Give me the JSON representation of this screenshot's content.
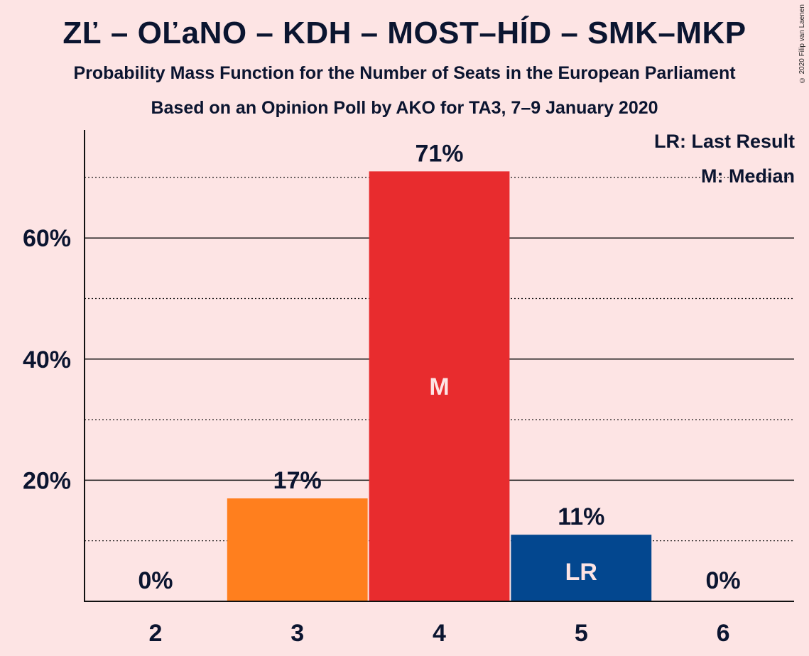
{
  "title": "ZĽ – OĽaNO – KDH – MOST–HÍD – SMK–MKP",
  "subtitle1": "Probability Mass Function for the Number of Seats in the European Parliament",
  "subtitle2": "Based on an Opinion Poll by AKO for TA3, 7–9 January 2020",
  "copyright": "© 2020 Filip van Laenen",
  "legend": {
    "lr": "LR: Last Result",
    "m": "M: Median"
  },
  "chart_data": {
    "type": "bar",
    "categories": [
      "2",
      "3",
      "4",
      "5",
      "6"
    ],
    "values": [
      0,
      17,
      71,
      11,
      0
    ],
    "value_labels": [
      "0%",
      "17%",
      "71%",
      "11%",
      "0%"
    ],
    "bar_markers": [
      "",
      "",
      "M",
      "LR",
      ""
    ],
    "ylim": [
      0,
      78
    ],
    "yticks": [
      20,
      40,
      60
    ],
    "ytick_labels": [
      "20%",
      "40%",
      "60%"
    ],
    "minor_gridlines": [
      10,
      30,
      50,
      70
    ],
    "grid": true,
    "legend_position": "top-right",
    "colors": {
      "background": "#fde4e4",
      "bar_default": "#ff7f1e",
      "bar_median": "#e82c2e",
      "bar_last_result": "#03478f",
      "text": "#0b1530"
    }
  }
}
